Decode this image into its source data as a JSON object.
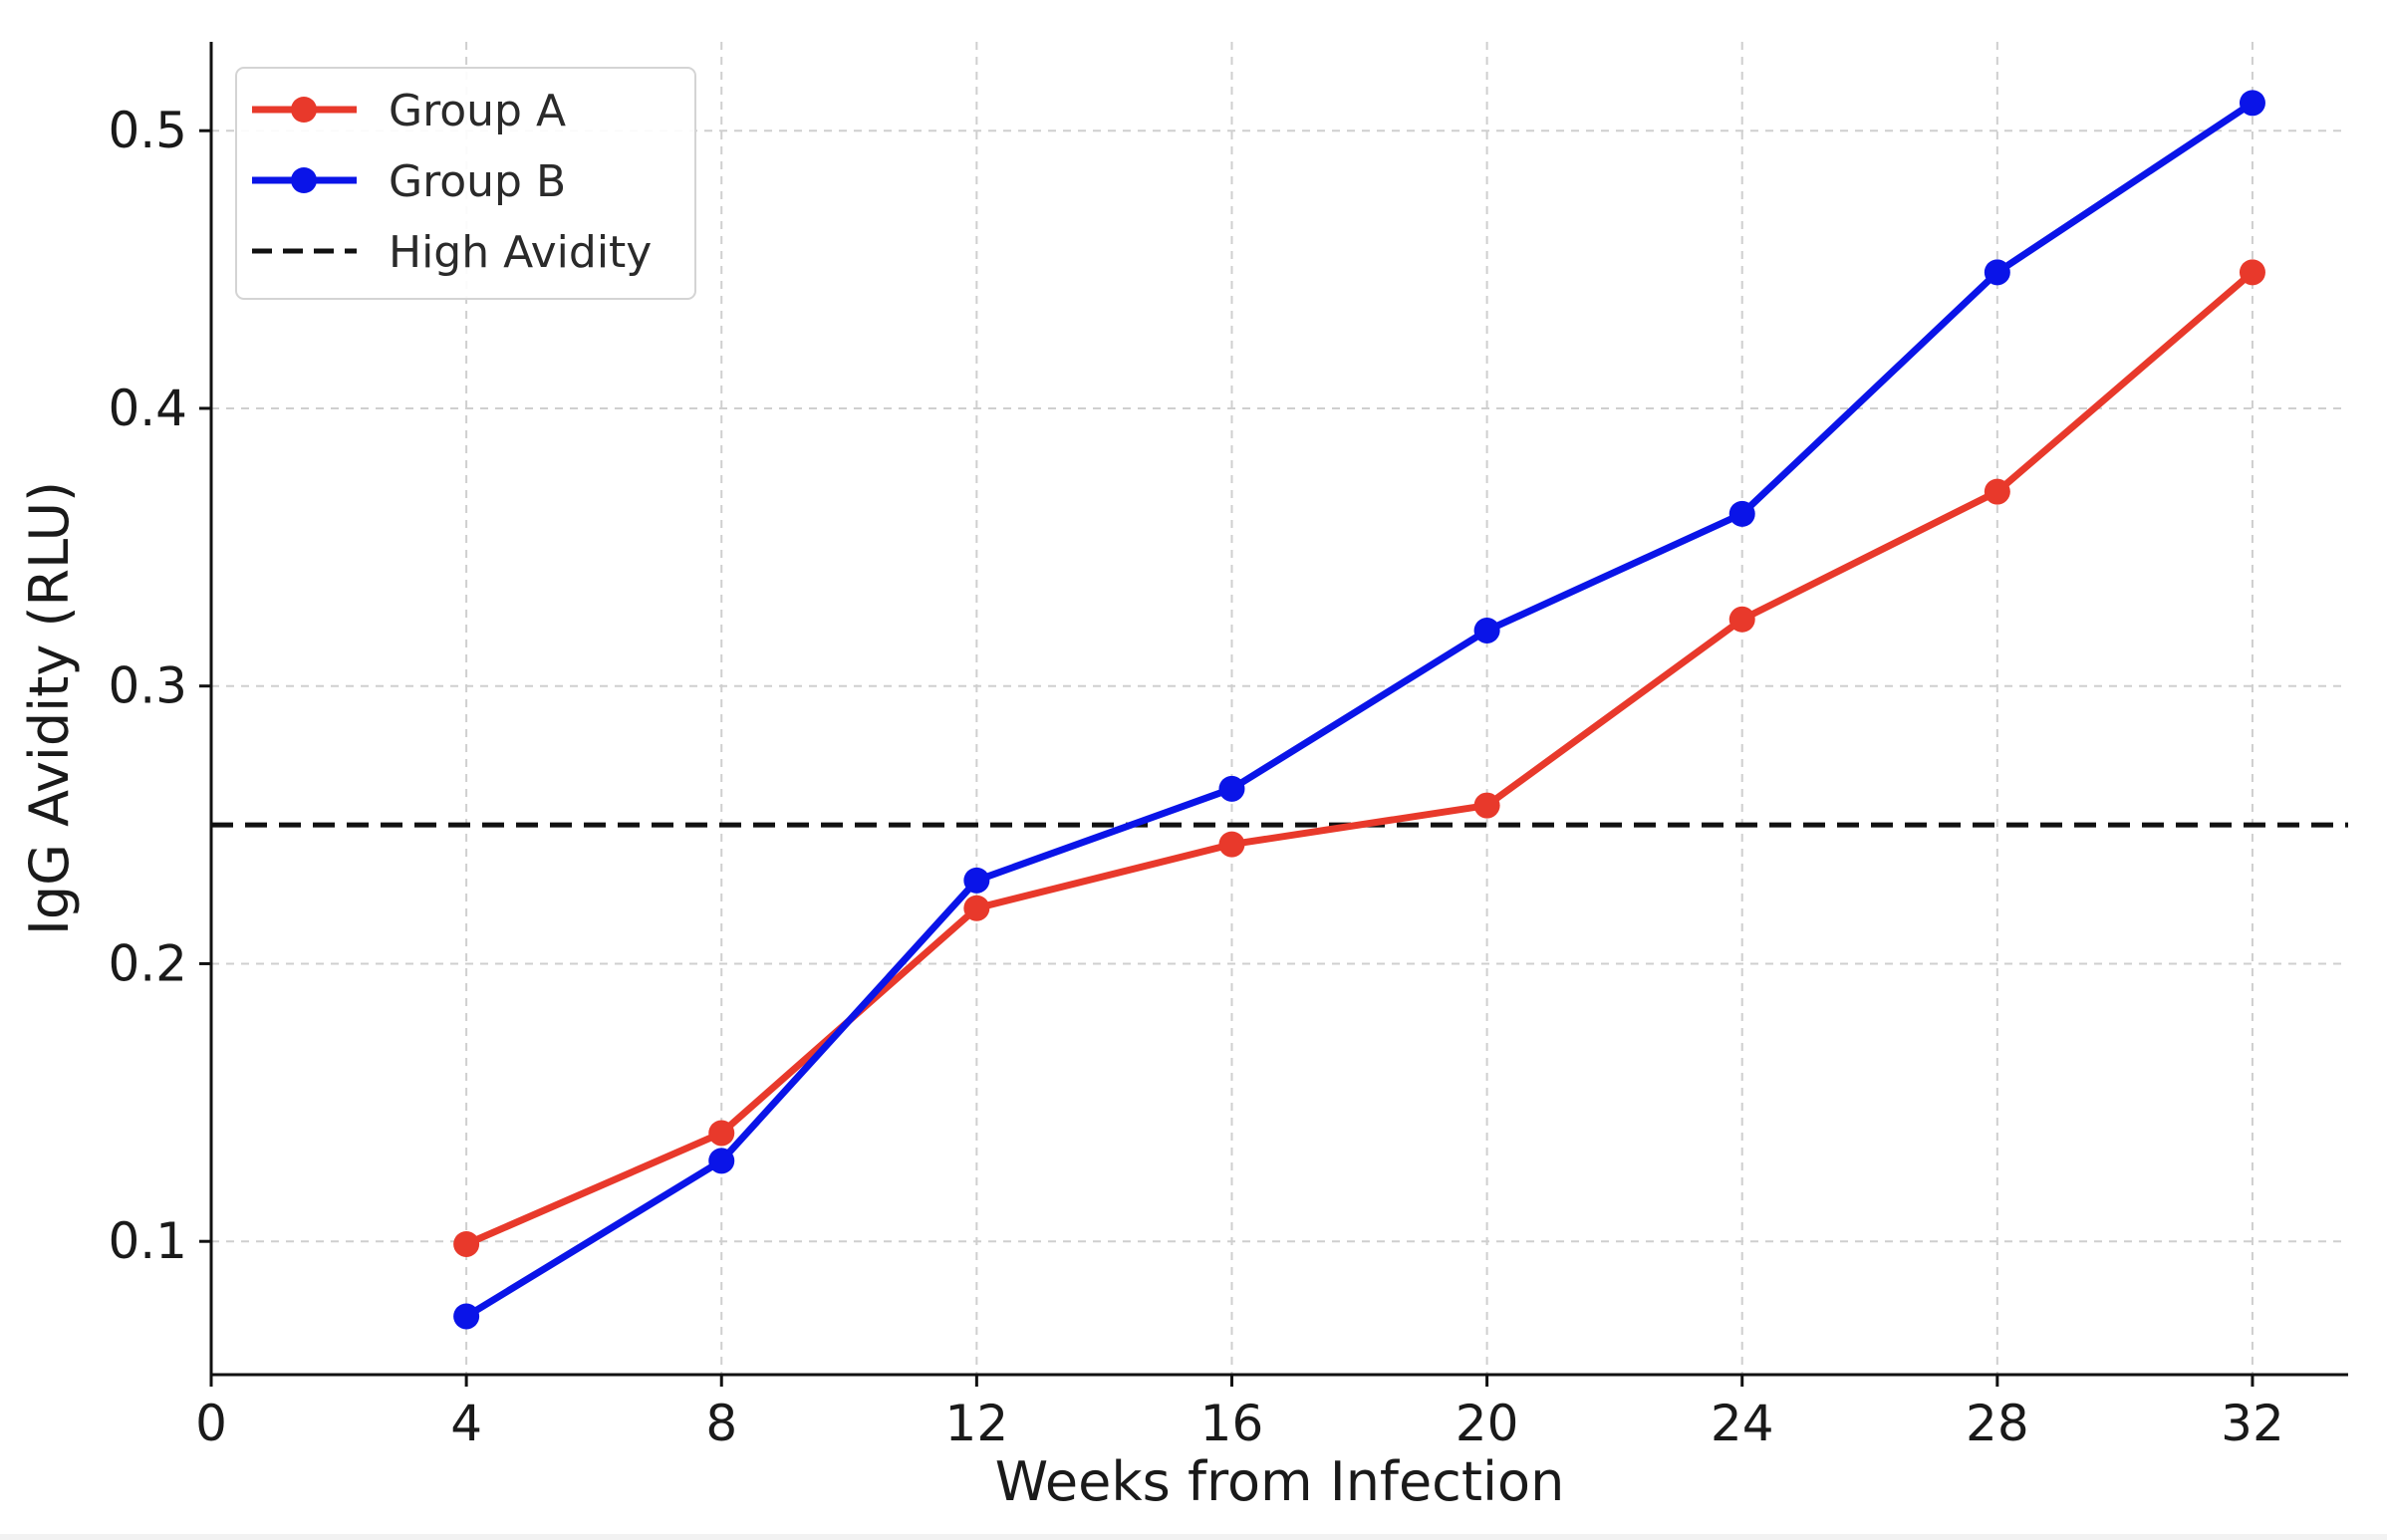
{
  "chart_data": {
    "type": "line",
    "title": "",
    "xlabel": "Weeks from Infection",
    "ylabel": "IgG Avidity (RLU)",
    "xlim": [
      0,
      33.5
    ],
    "ylim": [
      0.052,
      0.532
    ],
    "x_ticks": [
      0,
      4,
      8,
      12,
      16,
      20,
      24,
      28,
      32
    ],
    "y_ticks": [
      0.1,
      0.2,
      0.3,
      0.4,
      0.5
    ],
    "grid": true,
    "legend_position": "top-left",
    "series": [
      {
        "name": "Group A",
        "color": "#e8392b",
        "x": [
          4,
          8,
          12,
          16,
          20,
          24,
          28,
          32
        ],
        "values": [
          0.099,
          0.139,
          0.22,
          0.243,
          0.257,
          0.324,
          0.37,
          0.449
        ]
      },
      {
        "name": "Group B",
        "color": "#0a14e8",
        "x": [
          4,
          8,
          12,
          16,
          20,
          24,
          28,
          32
        ],
        "values": [
          0.073,
          0.129,
          0.23,
          0.263,
          0.32,
          0.362,
          0.449,
          0.51
        ]
      }
    ],
    "reference_lines": [
      {
        "name": "High Avidity",
        "value": 0.25,
        "color": "#111111",
        "style": "dashed"
      }
    ]
  }
}
